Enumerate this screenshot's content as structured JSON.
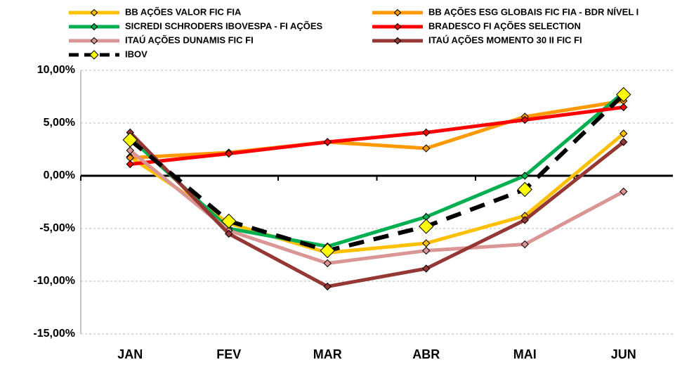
{
  "chart_data": {
    "type": "line",
    "categories": [
      "JAN",
      "FEV",
      "MAR",
      "ABR",
      "MAI",
      "JUN"
    ],
    "series": [
      {
        "name": "BB AÇÕES VALOR FIC FIA",
        "color": "#ffc000",
        "values": [
          1.8,
          -4.5,
          -7.3,
          -6.4,
          -3.8,
          4.0
        ]
      },
      {
        "name": "BB AÇÕES ESG GLOBAIS FIC FIA - BDR NÍVEL I",
        "color": "#ff9900",
        "values": [
          1.7,
          2.2,
          3.2,
          2.6,
          5.6,
          7.1
        ]
      },
      {
        "name": "SICREDI SCHRODERS IBOVESPA - FI AÇÕES",
        "color": "#00b050",
        "values": [
          3.6,
          -5.0,
          -6.7,
          -3.9,
          0.0,
          7.9
        ]
      },
      {
        "name": "BRADESCO FI AÇÕES SELECTION",
        "color": "#ff0000",
        "values": [
          1.1,
          2.1,
          3.2,
          4.1,
          5.3,
          6.5
        ]
      },
      {
        "name": "ITAÚ AÇÕES DUNAMIS FIC FI",
        "color": "#da9694",
        "values": [
          2.4,
          -5.2,
          -8.3,
          -7.1,
          -6.5,
          -1.5
        ]
      },
      {
        "name": "ITAÚ AÇÕES MOMENTO 30 II FIC FI",
        "color": "#953735",
        "values": [
          4.1,
          -5.5,
          -10.5,
          -8.8,
          -4.2,
          3.2
        ]
      },
      {
        "name": "IBOV",
        "color": "#000000",
        "marker_color": "#ffff00",
        "dashed": true,
        "values": [
          3.4,
          -4.3,
          -7.1,
          -4.8,
          -1.3,
          7.7
        ]
      }
    ],
    "ylim": [
      -15,
      10
    ],
    "yticks": [
      {
        "value": -15,
        "label": "-15,00%"
      },
      {
        "value": -10,
        "label": "-10,00%"
      },
      {
        "value": -5,
        "label": "-5,00%"
      },
      {
        "value": 0,
        "label": "0,00%"
      },
      {
        "value": 5,
        "label": "5,00%"
      },
      {
        "value": 10,
        "label": "10,00%"
      }
    ],
    "grid": true
  }
}
